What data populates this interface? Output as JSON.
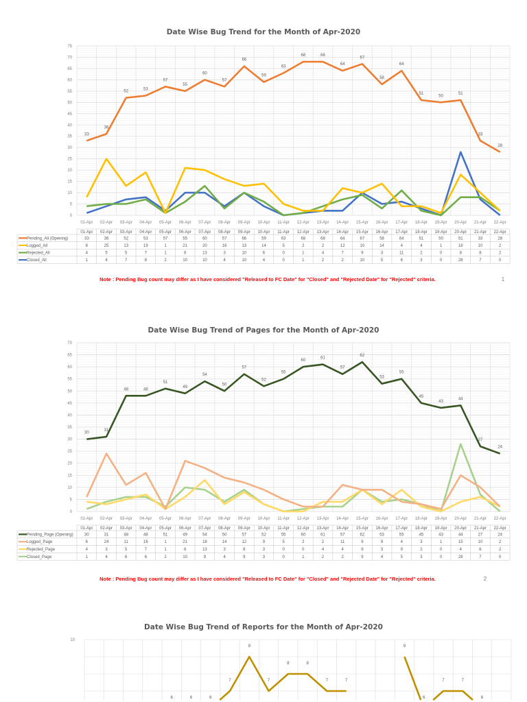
{
  "dates": [
    "01-Apr",
    "02-Apr",
    "03-Apr",
    "04-Apr",
    "05-Apr",
    "06-Apr",
    "07-Apr",
    "08-Apr",
    "09-Apr",
    "10-Apr",
    "11-Apr",
    "12-Apr",
    "13-Apr",
    "14-Apr",
    "15-Apr",
    "16-Apr",
    "17-Apr",
    "18-Apr",
    "19-Apr",
    "20-Apr",
    "21-Apr",
    "22-Apr"
  ],
  "chart_data": [
    {
      "type": "line",
      "title": "Date Wise Bug Trend for the Month of Apr-2020",
      "ylim": [
        0,
        75
      ],
      "ytick_step": 5,
      "grid": true,
      "legend": "data-table-bottom",
      "series": [
        {
          "name": "Pending_All (Opening)",
          "color": "#ED7D31",
          "labels": true,
          "values": [
            33,
            36,
            52,
            53,
            57,
            55,
            60,
            57,
            66,
            59,
            63,
            68,
            68,
            64,
            67,
            58,
            64,
            51,
            50,
            51,
            33,
            28
          ]
        },
        {
          "name": "Logged_All",
          "color": "#FFC000",
          "values": [
            8,
            25,
            13,
            19,
            1,
            21,
            20,
            16,
            13,
            14,
            5,
            2,
            2,
            12,
            10,
            14,
            4,
            4,
            1,
            18,
            10,
            2
          ]
        },
        {
          "name": "Rejected_All",
          "color": "#70AD47",
          "values": [
            4,
            5,
            5,
            7,
            1,
            6,
            13,
            3,
            10,
            6,
            0,
            1,
            4,
            7,
            9,
            3,
            11,
            2,
            0,
            8,
            8,
            2
          ]
        },
        {
          "name": "Closed_All",
          "color": "#4472C4",
          "values": [
            1,
            4,
            7,
            8,
            2,
            10,
            10,
            4,
            10,
            4,
            0,
            1,
            2,
            2,
            10,
            5,
            6,
            3,
            0,
            28,
            7,
            0
          ]
        }
      ],
      "note": "Note : Pending Bug count may differ as I have considered \"Released to FC Date\" for \"Closed\" and \"Rejected Date\" for \"Rejected\" criteria.",
      "page": "1"
    },
    {
      "type": "line",
      "title": "Date Wise Bug Trend of Pages for the Month of Apr-2020",
      "ylim": [
        0,
        70
      ],
      "ytick_step": 5,
      "grid": true,
      "legend": "data-table-bottom",
      "series": [
        {
          "name": "Pending_Page (Opening)",
          "color": "#375623",
          "labels": true,
          "values": [
            30,
            31,
            48,
            48,
            51,
            49,
            54,
            50,
            57,
            52,
            55,
            60,
            61,
            57,
            62,
            53,
            55,
            45,
            43,
            44,
            27,
            24
          ]
        },
        {
          "name": "Logged_Page",
          "color": "#F4B183",
          "values": [
            6,
            24,
            11,
            16,
            1,
            21,
            18,
            14,
            12,
            9,
            5,
            2,
            2,
            11,
            9,
            9,
            4,
            3,
            1,
            15,
            10,
            2
          ]
        },
        {
          "name": "Rejected_Page",
          "color": "#FFD966",
          "values": [
            4,
            3,
            5,
            7,
            1,
            6,
            13,
            3,
            8,
            3,
            0,
            0,
            4,
            4,
            9,
            3,
            9,
            2,
            0,
            4,
            6,
            2
          ]
        },
        {
          "name": "Closed_Page",
          "color": "#A9D18E",
          "values": [
            1,
            4,
            6,
            6,
            2,
            10,
            9,
            4,
            9,
            3,
            0,
            1,
            2,
            2,
            9,
            4,
            5,
            3,
            0,
            28,
            7,
            0
          ]
        }
      ],
      "note": "Note : Pending Bug count may differ as I have considered \"Released to FC Date\" for \"Closed\" and \"Rejected Date\" for \"Rejected\" criteria.",
      "page": "2"
    },
    {
      "type": "line",
      "title": "Date Wise Bug Trend of Reports for the Month of Apr-2020",
      "ytick_labels_visible": [
        "10"
      ],
      "grid": true,
      "series": [
        {
          "color": "#BF9000",
          "labels": true,
          "values": [
            null,
            null,
            null,
            null,
            6,
            6,
            6,
            7,
            9,
            7,
            8,
            8,
            7,
            7,
            null,
            null,
            9,
            6,
            7,
            7,
            6,
            null
          ]
        }
      ]
    }
  ]
}
